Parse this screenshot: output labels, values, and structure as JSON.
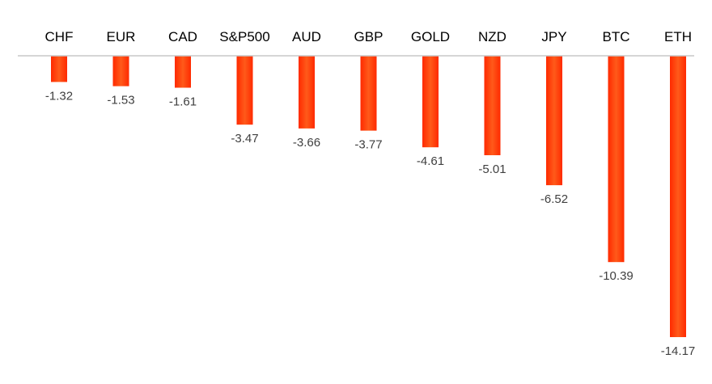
{
  "chart_data": {
    "type": "bar",
    "orientation": "vertical",
    "categories": [
      "CHF",
      "EUR",
      "CAD",
      "S&P500",
      "AUD",
      "GBP",
      "GOLD",
      "NZD",
      "JPY",
      "BTC",
      "ETH"
    ],
    "values": [
      -1.32,
      -1.53,
      -1.61,
      -3.47,
      -3.66,
      -3.77,
      -4.61,
      -5.01,
      -6.52,
      -10.39,
      -14.17
    ],
    "data_labels": [
      "-1.32",
      "-1.53",
      "-1.61",
      "-3.47",
      "-3.66",
      "-3.77",
      "-4.61",
      "-5.01",
      "-6.52",
      "-10.39",
      "-14.17"
    ],
    "title": "",
    "xlabel": "",
    "ylabel": "",
    "ylim": [
      -14.17,
      0
    ],
    "grid": false,
    "legend": "none",
    "category_axis_position": "top",
    "colors": {
      "bar_gradient": [
        "#ff2a00",
        "#ff5a1a",
        "#ff2a00"
      ],
      "axis_line": "#c8c8c8",
      "category_text": "#000000",
      "value_text": "#404040"
    }
  }
}
